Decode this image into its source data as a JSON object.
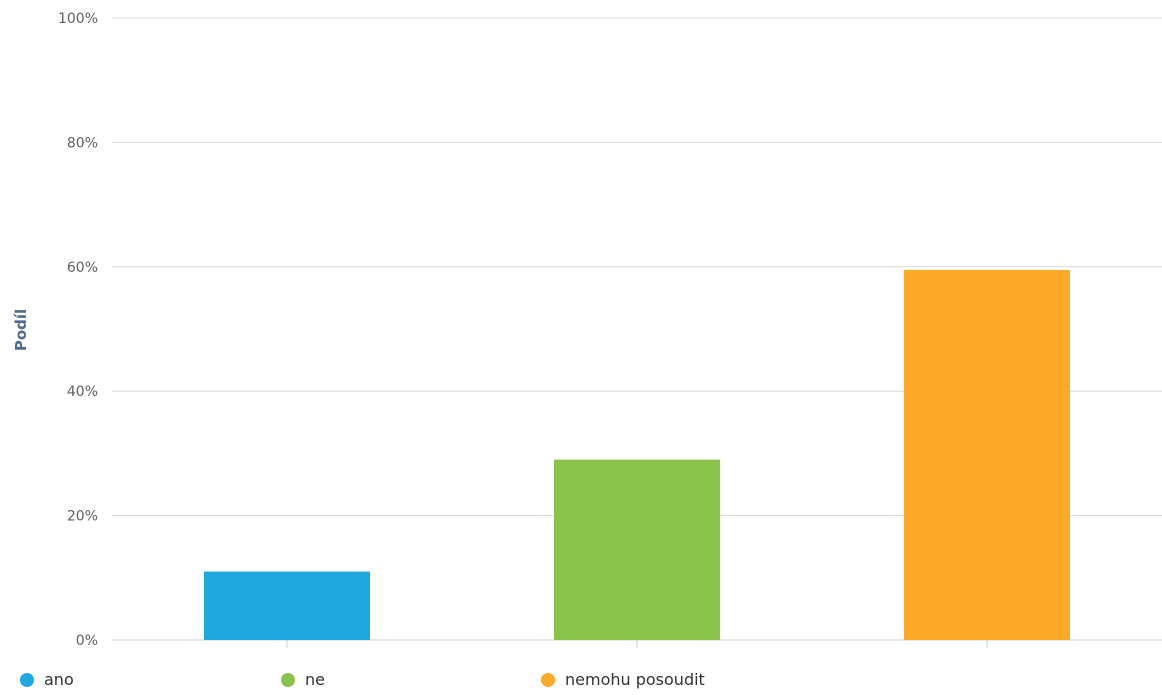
{
  "chart_data": {
    "type": "bar",
    "categories": [
      "ano",
      "ne",
      "nemohu posoudit"
    ],
    "values": [
      11,
      29,
      59.5
    ],
    "colors": [
      "#1ea8e0",
      "#8bc34a",
      "#fba927"
    ],
    "ylabel": "Podíl",
    "ylim": [
      0,
      100
    ],
    "yticks": [
      "0%",
      "20%",
      "40%",
      "60%",
      "80%",
      "100%"
    ],
    "grid": true,
    "legend": {
      "position": "bottom-left",
      "items": [
        {
          "label": "ano",
          "color": "#1ea8e0"
        },
        {
          "label": "ne",
          "color": "#8bc34a"
        },
        {
          "label": "nemohu posoudit",
          "color": "#fba927"
        }
      ]
    }
  }
}
